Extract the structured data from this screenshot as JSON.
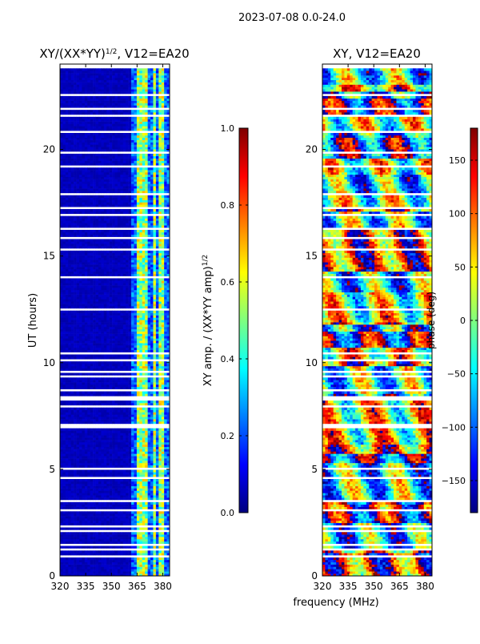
{
  "suptitle": "2023-07-08 0.0-24.0",
  "colors": {
    "jet": [
      "#00007f",
      "#0000ff",
      "#007fff",
      "#00ffff",
      "#7fff7f",
      "#ffff00",
      "#ff7f00",
      "#ff0000",
      "#7f0000"
    ],
    "gap": "#ffffff",
    "axis": "#000000"
  },
  "chart_data": [
    {
      "type": "heatmap",
      "title_main": "XY/(XX*YY)",
      "title_exp": "1/2",
      "title_tail": ", V12=EA20",
      "ylabel": "UT (hours)",
      "xlim": [
        320,
        384
      ],
      "ylim": [
        0,
        24
      ],
      "xticks": [
        320,
        335,
        350,
        365,
        380
      ],
      "yticks": [
        0,
        5,
        10,
        15,
        20
      ],
      "data_extent_hours": [
        0.0,
        23.8
      ],
      "band_start_mhz": 361,
      "bright_channels_mhz": [
        366,
        369.5,
        375,
        379.5
      ],
      "colorbar": {
        "label_main": "XY amp. / (XX*YY amp)",
        "label_exp": "1/2",
        "range": [
          0.0,
          1.0
        ],
        "ticks": [
          "0.0",
          "0.2",
          "0.4",
          "0.6",
          "0.8",
          "1.0"
        ]
      }
    },
    {
      "type": "heatmap",
      "title": "XY, V12=EA20",
      "xlim": [
        320,
        384
      ],
      "ylim": [
        0,
        24
      ],
      "xticks": [
        320,
        335,
        350,
        365,
        380
      ],
      "yticks": [
        0,
        5,
        10,
        15,
        20
      ],
      "data_extent_hours": [
        0.0,
        23.8
      ],
      "colorbar": {
        "label": "phase (deg)",
        "range": [
          -180,
          180
        ],
        "ticks": [
          "−150",
          "−100",
          "−50",
          "0",
          "50",
          "100",
          "150"
        ]
      }
    }
  ],
  "shared_xlabel": "frequency (MHz)",
  "gap_intervals_hours": [
    [
      0.85,
      0.98
    ],
    [
      1.2,
      1.26
    ],
    [
      1.45,
      1.5
    ],
    [
      1.8,
      1.84
    ],
    [
      2.08,
      2.12
    ],
    [
      2.3,
      2.35
    ],
    [
      2.55,
      2.6
    ],
    [
      3.05,
      3.1
    ],
    [
      3.42,
      3.62
    ],
    [
      4.08,
      4.13
    ],
    [
      4.55,
      4.6
    ],
    [
      4.72,
      4.78
    ],
    [
      5.03,
      5.08
    ],
    [
      6.05,
      6.1
    ],
    [
      6.48,
      6.53
    ],
    [
      6.92,
      7.12
    ],
    [
      7.88,
      8.0
    ],
    [
      8.22,
      8.42
    ],
    [
      8.7,
      8.74
    ],
    [
      8.97,
      9.01
    ],
    [
      9.32,
      9.36
    ],
    [
      9.55,
      9.6
    ],
    [
      9.82,
      9.86
    ],
    [
      10.08,
      10.12
    ],
    [
      10.35,
      10.45
    ],
    [
      10.88,
      10.93
    ],
    [
      11.35,
      11.4
    ],
    [
      11.65,
      11.7
    ],
    [
      11.85,
      11.9
    ],
    [
      12.2,
      12.25
    ],
    [
      12.45,
      12.5
    ],
    [
      13.28,
      13.32
    ],
    [
      13.95,
      14.1
    ],
    [
      14.92,
      14.96
    ],
    [
      15.28,
      15.32
    ],
    [
      15.55,
      15.6
    ],
    [
      15.82,
      15.86
    ],
    [
      16.25,
      16.3
    ],
    [
      16.52,
      16.56
    ],
    [
      16.92,
      16.96
    ],
    [
      17.25,
      17.3
    ],
    [
      17.58,
      17.62
    ],
    [
      17.9,
      17.94
    ],
    [
      19.2,
      19.24
    ],
    [
      19.45,
      19.5
    ],
    [
      19.82,
      19.86
    ],
    [
      20.22,
      20.26
    ],
    [
      20.55,
      20.59
    ],
    [
      20.8,
      20.84
    ],
    [
      21.05,
      21.1
    ],
    [
      21.3,
      21.34
    ],
    [
      21.58,
      21.62
    ],
    [
      21.9,
      21.94
    ],
    [
      22.18,
      22.22
    ],
    [
      22.35,
      22.4
    ],
    [
      22.55,
      22.6
    ],
    [
      22.8,
      22.84
    ],
    [
      23.0,
      23.04
    ],
    [
      23.12,
      23.16
    ]
  ]
}
